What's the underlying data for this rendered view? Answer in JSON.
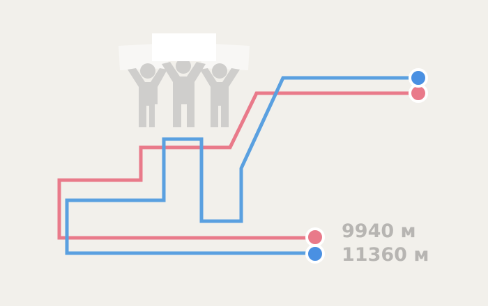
{
  "routes": [
    {
      "distance_label": "9940 м",
      "color": "#e97a8a"
    },
    {
      "distance_label": "11360 м",
      "color": "#4a90e2"
    }
  ],
  "illustration": {
    "icon": "protest-people-with-signs-icon",
    "color": "#cfcecc"
  }
}
